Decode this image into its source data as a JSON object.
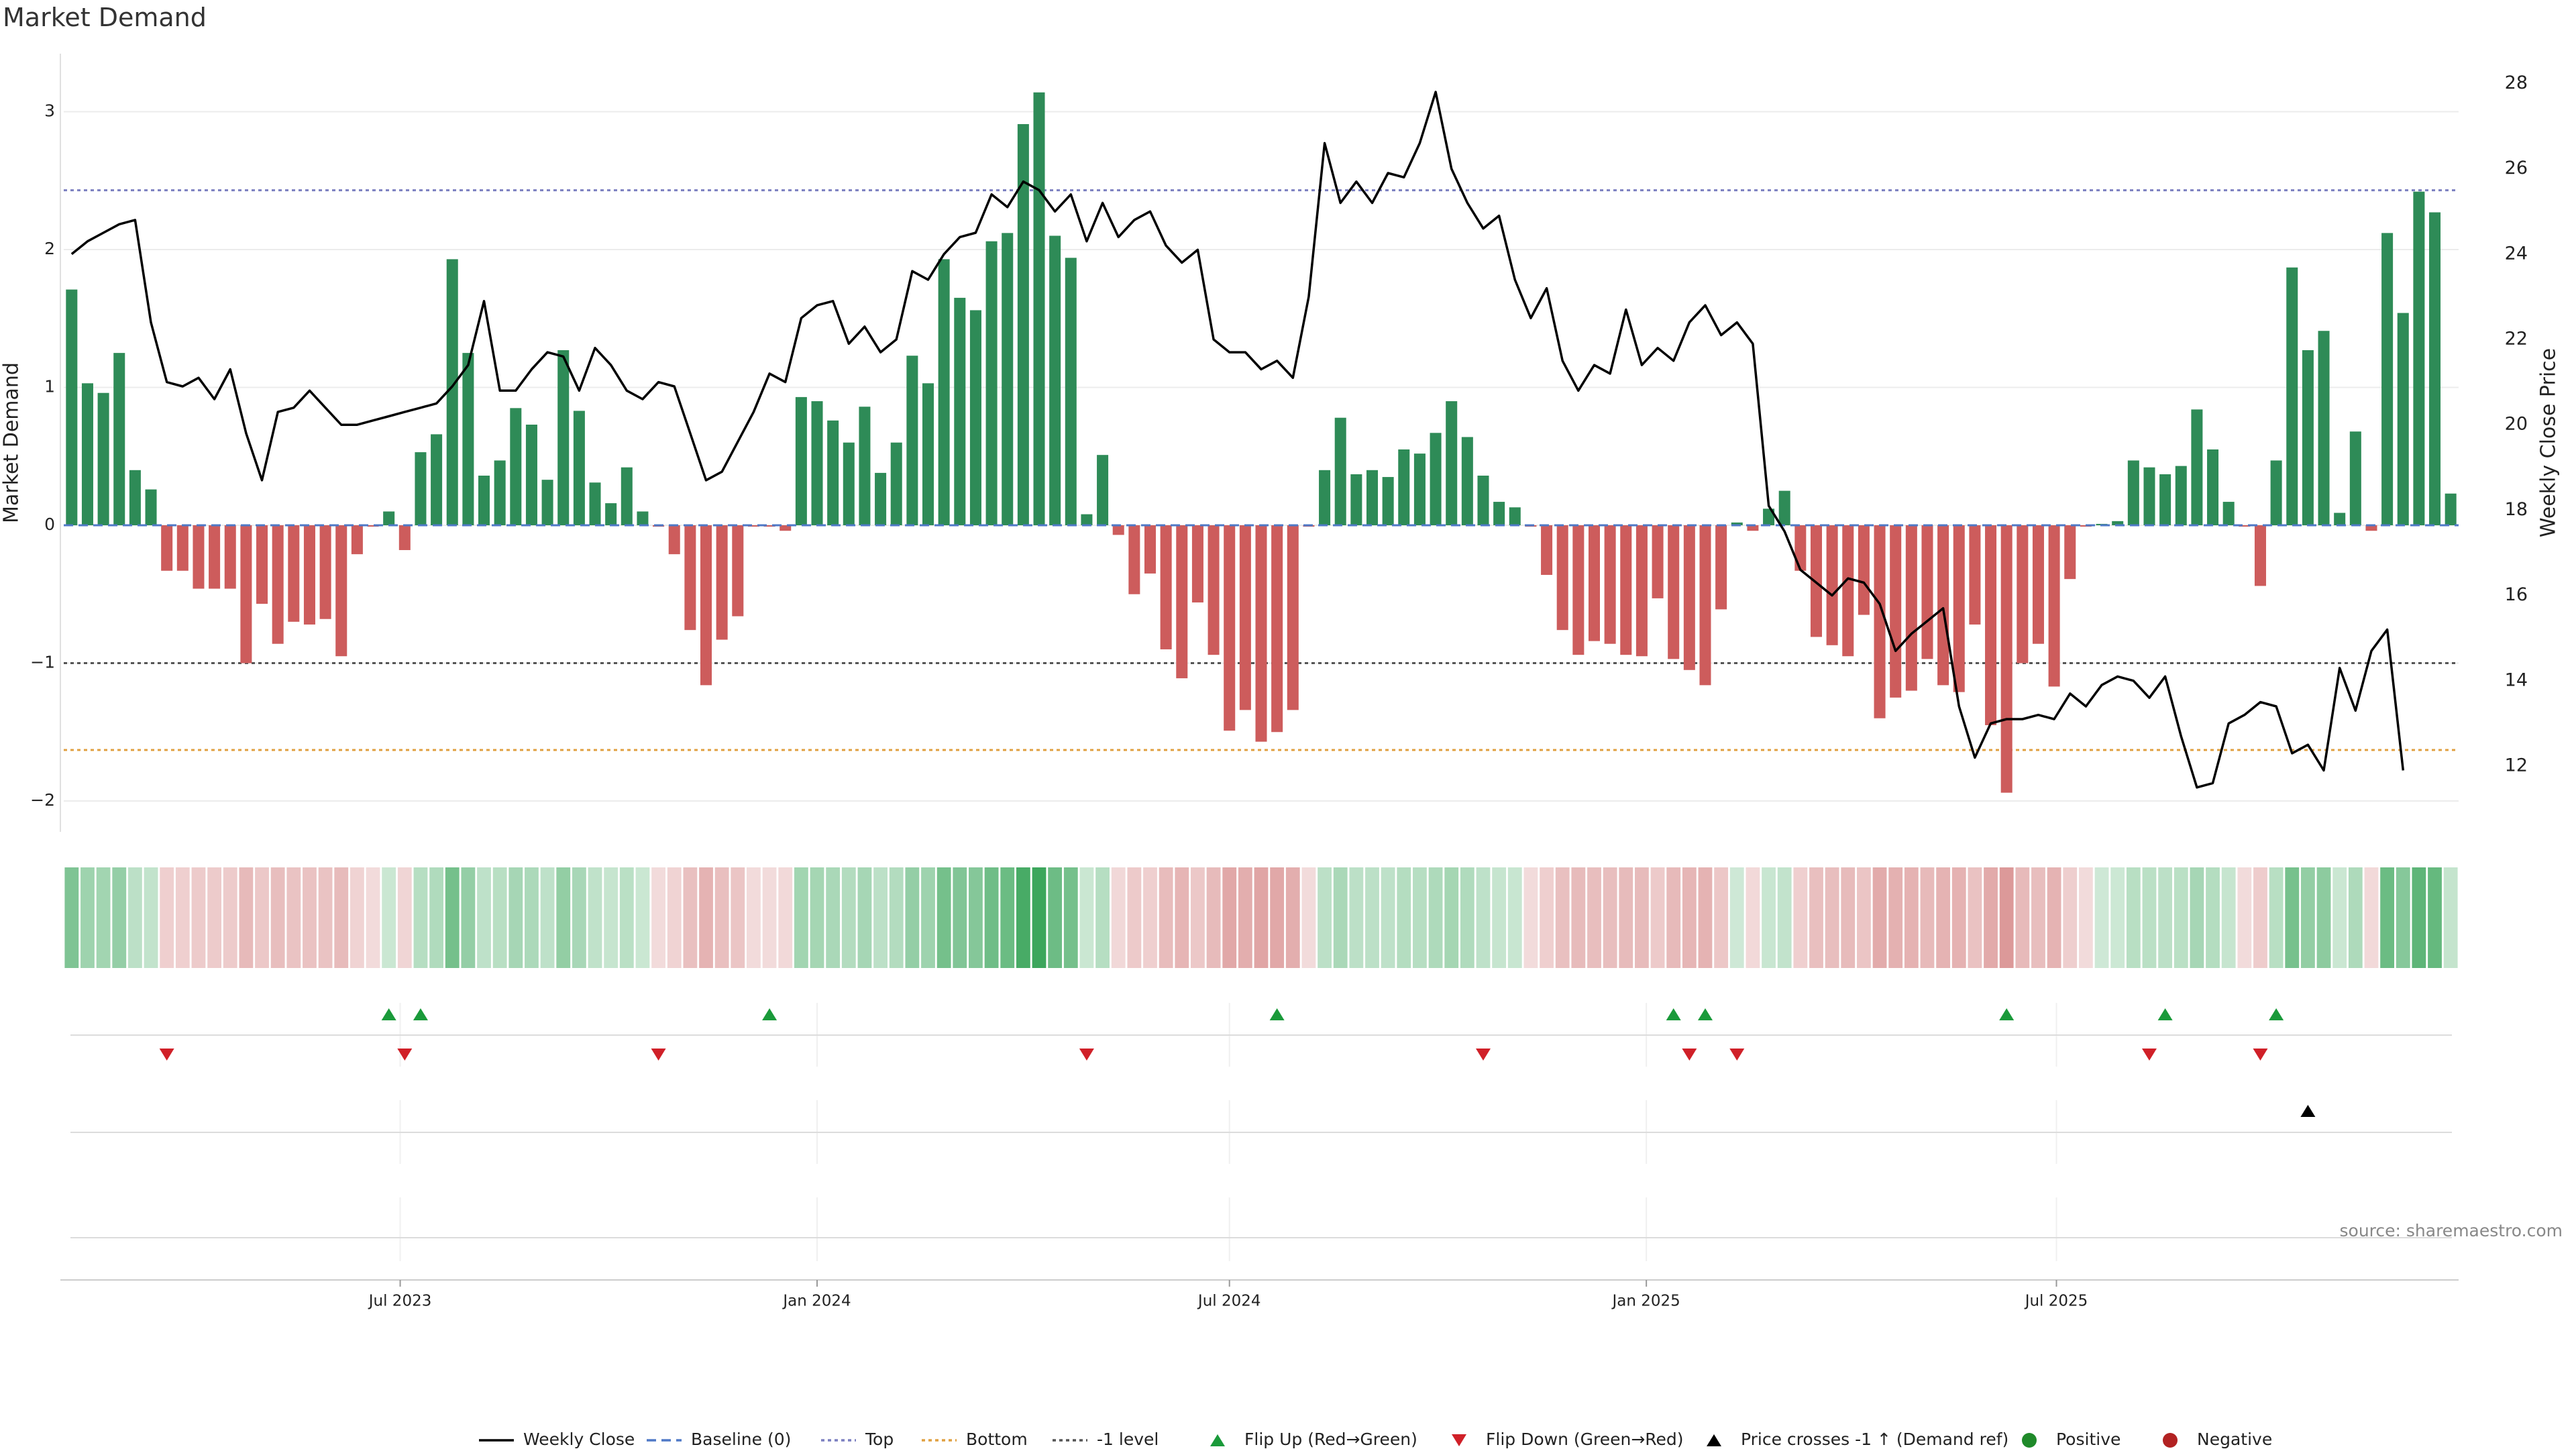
{
  "title": "Market Demand",
  "source": "source: sharemaestro.com",
  "colors": {
    "positive": "#2e8b57",
    "negative": "#cd5c5c",
    "price": "#000000",
    "baseline": "#4f79c7",
    "top": "#7b7fc0",
    "bottom": "#e0a040",
    "minus1": "#555555",
    "flip_up": "#1a9a3a",
    "flip_down": "#d02028",
    "positive_dot": "#1f8a2a",
    "negative_dot": "#b22222"
  },
  "chart_data": {
    "type": "bar",
    "x_start": "2023-02-06",
    "x_step_days": 7,
    "x_ticks": [
      "Jul 2023",
      "Jan 2024",
      "Jul 2024",
      "Jan 2025",
      "Jul 2025"
    ],
    "x_tick_dates": [
      "2023-07-01",
      "2024-01-01",
      "2024-07-01",
      "2025-01-01",
      "2025-07-01"
    ],
    "ylabel": "Market Demand",
    "ylabel_right": "Weekly Close Price",
    "ylim": [
      -2.2,
      3.4
    ],
    "ylim_right": [
      11.2,
      28.5
    ],
    "y_ticks": [
      "−2",
      "−1",
      "0",
      "1",
      "2",
      "3"
    ],
    "y_tick_values": [
      -2,
      -1,
      0,
      1,
      2,
      3
    ],
    "y_ticks_right": [
      "12",
      "14",
      "16",
      "18",
      "20",
      "22",
      "24",
      "26",
      "28"
    ],
    "y_tick_values_right": [
      12,
      14,
      16,
      18,
      20,
      22,
      24,
      26,
      28
    ],
    "reference_lines": {
      "top": 2.43,
      "bottom": -1.63,
      "minus1": -1.0,
      "baseline": 0
    },
    "series": [
      {
        "name": "Market Demand",
        "values": [
          1.71,
          1.03,
          0.96,
          1.25,
          0.4,
          0.26,
          -0.33,
          -0.33,
          -0.46,
          -0.46,
          -0.46,
          -1.0,
          -0.57,
          -0.86,
          -0.7,
          -0.72,
          -0.68,
          -0.95,
          -0.21,
          -0.01,
          0.1,
          -0.18,
          0.53,
          0.66,
          1.93,
          1.25,
          0.36,
          0.47,
          0.85,
          0.73,
          0.33,
          1.27,
          0.83,
          0.31,
          0.16,
          0.42,
          0.1,
          -0.01,
          -0.21,
          -0.76,
          -1.16,
          -0.83,
          -0.66,
          -0.01,
          -0.01,
          -0.04,
          0.93,
          0.9,
          0.76,
          0.6,
          0.86,
          0.38,
          0.6,
          1.23,
          1.03,
          1.93,
          1.65,
          1.56,
          2.06,
          2.12,
          2.91,
          3.14,
          2.1,
          1.94,
          0.08,
          0.51,
          -0.07,
          -0.5,
          -0.35,
          -0.9,
          -1.11,
          -0.56,
          -0.94,
          -1.49,
          -1.34,
          -1.57,
          -1.5,
          -1.34,
          -0.01,
          0.4,
          0.78,
          0.37,
          0.4,
          0.35,
          0.55,
          0.52,
          0.67,
          0.9,
          0.64,
          0.36,
          0.17,
          0.13,
          -0.01,
          -0.36,
          -0.76,
          -0.94,
          -0.84,
          -0.86,
          -0.94,
          -0.95,
          -0.53,
          -0.97,
          -1.05,
          -1.16,
          -0.61,
          0.02,
          -0.04,
          0.12,
          0.25,
          -0.33,
          -0.81,
          -0.87,
          -0.95,
          -0.65,
          -1.4,
          -1.25,
          -1.2,
          -0.97,
          -1.16,
          -1.21,
          -0.72,
          -1.45,
          -1.94,
          -1.0,
          -0.86,
          -1.17,
          -0.39,
          -0.01,
          0.01,
          0.03,
          0.47,
          0.42,
          0.37,
          0.43,
          0.84,
          0.55,
          0.17,
          -0.01,
          -0.44,
          0.47,
          1.87,
          1.27,
          1.41,
          0.09,
          0.68,
          -0.04,
          2.12,
          1.54,
          2.42,
          2.27,
          0.23
        ]
      },
      {
        "name": "Weekly Close",
        "values": [
          24.0,
          24.3,
          24.5,
          24.7,
          24.8,
          22.4,
          21.0,
          20.9,
          21.1,
          20.6,
          21.3,
          19.8,
          18.7,
          20.3,
          20.4,
          20.8,
          20.4,
          20.0,
          20.0,
          20.1,
          20.2,
          20.3,
          20.4,
          20.5,
          20.9,
          21.4,
          22.9,
          20.8,
          20.8,
          21.3,
          21.7,
          21.6,
          20.8,
          21.8,
          21.4,
          20.8,
          20.6,
          21.0,
          20.9,
          19.8,
          18.7,
          18.9,
          19.6,
          20.3,
          21.2,
          21.0,
          22.5,
          22.8,
          22.9,
          21.9,
          22.3,
          21.7,
          22.0,
          23.6,
          23.4,
          24.0,
          24.4,
          24.5,
          25.4,
          25.1,
          25.7,
          25.5,
          25.0,
          25.4,
          24.3,
          25.2,
          24.4,
          24.8,
          25.0,
          24.2,
          23.8,
          24.1,
          22.0,
          21.7,
          21.7,
          21.3,
          21.5,
          21.1,
          23.0,
          26.6,
          25.2,
          25.7,
          25.2,
          25.9,
          25.8,
          26.6,
          27.8,
          26.0,
          25.2,
          24.6,
          24.9,
          23.4,
          22.5,
          23.2,
          21.5,
          20.8,
          21.4,
          21.2,
          22.7,
          21.4,
          21.8,
          21.5,
          22.4,
          22.8,
          22.1,
          22.4,
          21.9,
          18.1,
          17.5,
          16.6,
          16.3,
          16.0,
          16.4,
          16.3,
          15.8,
          14.7,
          15.1,
          15.4,
          15.7,
          13.4,
          12.2,
          13.0,
          13.1,
          13.1,
          13.2,
          13.1,
          13.7,
          13.4,
          13.9,
          14.1,
          14.0,
          13.6,
          14.1,
          12.7,
          11.5,
          11.6,
          13.0,
          13.2,
          13.5,
          13.4,
          12.3,
          12.5,
          11.9,
          14.3,
          13.3,
          14.7,
          15.2,
          11.9
        ]
      }
    ],
    "legend": {
      "placement": "bottom",
      "items": [
        "Weekly Close",
        "Baseline (0)",
        "Top",
        "Bottom",
        "-1 level",
        "Flip Up (Red→Green)",
        "Flip Down (Green→Red)",
        "Price crosses -1 ↑ (Demand ref)",
        "Positive",
        "Negative"
      ]
    },
    "events": {
      "flip_up": [
        20,
        22,
        44,
        76,
        101,
        103,
        122,
        132,
        139
      ],
      "flip_down": [
        6,
        21,
        37,
        64,
        89,
        102,
        105,
        131,
        138
      ],
      "price_crosses": [
        141
      ]
    }
  }
}
